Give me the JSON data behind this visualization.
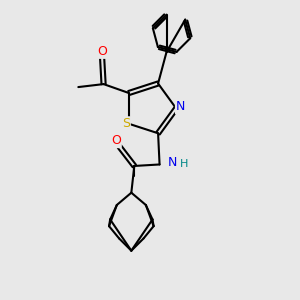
{
  "background_color": "#e8e8e8",
  "bond_color": "#000000",
  "bond_width": 1.5,
  "atom_colors": {
    "S": "#ccaa00",
    "N": "#0000ee",
    "O": "#ff0000",
    "NH": "#0000ee",
    "H": "#008888"
  },
  "figsize": [
    3.0,
    3.0
  ],
  "dpi": 100
}
